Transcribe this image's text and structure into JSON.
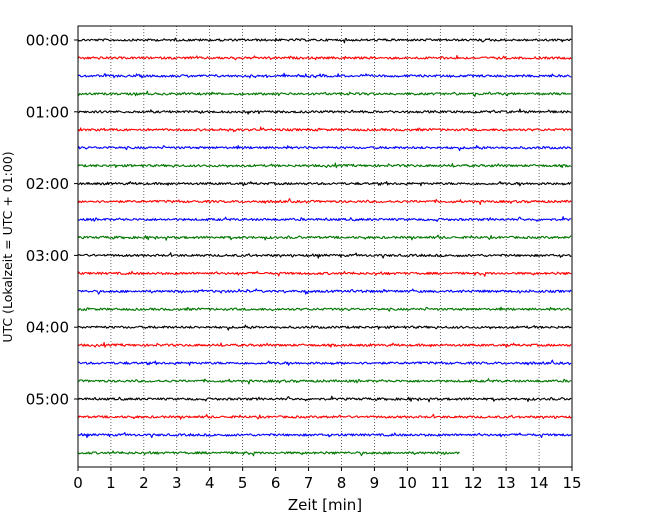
{
  "chart_data": {
    "type": "line",
    "title": "",
    "xlabel": "Zeit  [min]",
    "ylabel": "UTC (Lokalzeit = UTC + 01:00)",
    "xlim": [
      0,
      15
    ],
    "x_ticks": [
      "0",
      "1",
      "2",
      "3",
      "4",
      "5",
      "6",
      "7",
      "8",
      "9",
      "10",
      "11",
      "12",
      "13",
      "14",
      "15"
    ],
    "y_tick_labels": [
      "00:00",
      "01:00",
      "02:00",
      "03:00",
      "04:00",
      "05:00"
    ],
    "trace_interval_min": 15,
    "trace_count": 24,
    "last_trace_end_min": 11.6,
    "trace_colors": [
      "#000000",
      "#ff0000",
      "#0000ff",
      "#007700"
    ],
    "grid": {
      "x": true,
      "style": "dotted"
    },
    "legend": "none"
  }
}
